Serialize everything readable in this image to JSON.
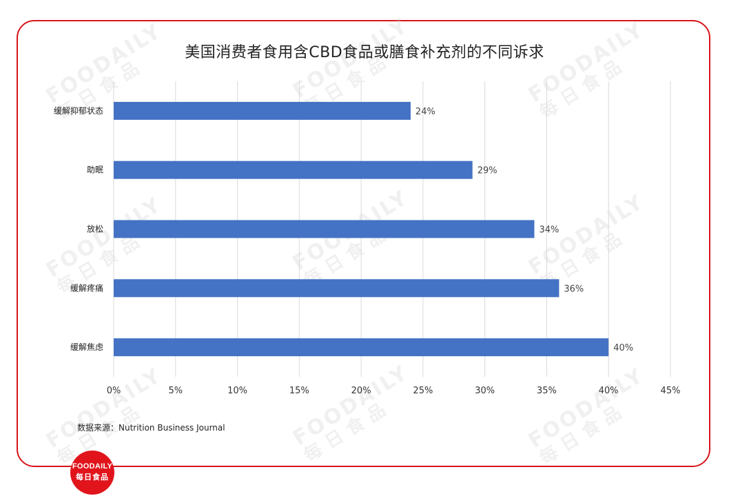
{
  "watermark": {
    "brand_en": "FOODAILY",
    "brand_cn": "每日食品"
  },
  "logo": {
    "brand_en": "FOODAILY",
    "brand_cn": "每日食品"
  },
  "source_text": "数据来源：Nutrition Business Journal",
  "colors": {
    "bar": "#4472c4",
    "frame": "#d7141a",
    "grid": "#d9d9d9",
    "logo": "#e1141c"
  },
  "chart_data": {
    "type": "bar",
    "orientation": "horizontal",
    "title": "美国消费者食用含CBD食品或膳食补充剂的不同诉求",
    "categories": [
      "缓解抑郁状态",
      "助眠",
      "放松",
      "缓解疼痛",
      "缓解焦虑"
    ],
    "values": [
      24,
      29,
      34,
      36,
      40
    ],
    "data_labels": [
      "24%",
      "29%",
      "34%",
      "36%",
      "40%"
    ],
    "xlim": [
      0,
      45
    ],
    "xticks": [
      0,
      5,
      10,
      15,
      20,
      25,
      30,
      35,
      40,
      45
    ],
    "xtick_labels": [
      "0%",
      "5%",
      "10%",
      "15%",
      "20%",
      "25%",
      "30%",
      "35%",
      "40%",
      "45%"
    ],
    "grid": true,
    "legend": "none"
  }
}
